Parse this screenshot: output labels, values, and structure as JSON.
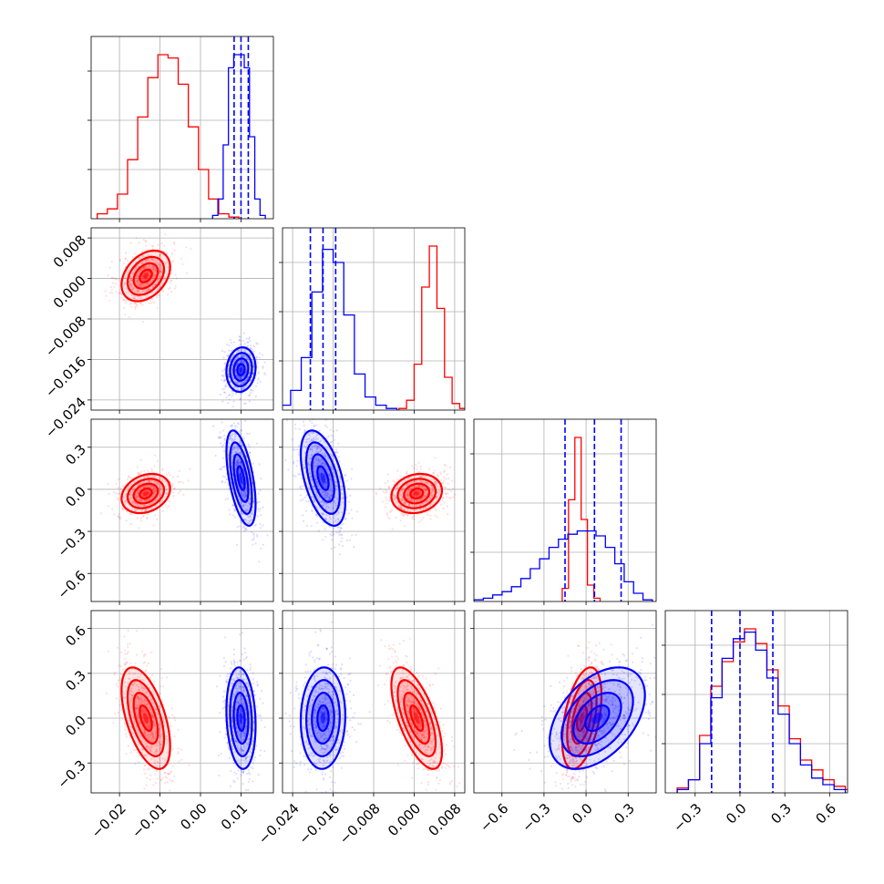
{
  "figure": {
    "title": "",
    "background": "#ffffff"
  },
  "colors": {
    "red": "#ff0000",
    "blue": "#0000ff"
  },
  "chart_data": {
    "type": "corner",
    "parameters": [
      {
        "range": [
          -0.027,
          0.018
        ],
        "ticks": [
          -0.02,
          -0.01,
          0.0,
          0.01
        ],
        "tick_labels": [
          "−0.02",
          "−0.01",
          "0.00",
          "0.01"
        ]
      },
      {
        "range": [
          -0.026,
          0.01
        ],
        "ticks": [
          -0.024,
          -0.016,
          -0.008,
          0.0,
          0.008
        ],
        "tick_labels": [
          "−0.024",
          "−0.016",
          "−0.008",
          "0.000",
          "0.008"
        ]
      },
      {
        "range": [
          -0.8,
          0.5
        ],
        "ticks": [
          -0.6,
          -0.3,
          0.0,
          0.3
        ],
        "tick_labels": [
          "−0.6",
          "−0.3",
          "0.0",
          "0.3"
        ]
      },
      {
        "range": [
          -0.5,
          0.72
        ],
        "ticks": [
          -0.3,
          0.0,
          0.3,
          0.6
        ],
        "tick_labels": [
          "−0.3",
          "0.0",
          "0.3",
          "0.6"
        ]
      }
    ],
    "series": [
      {
        "color": "#ff0000",
        "mean": [
          -0.0135,
          0.0005,
          -0.03,
          0.0
        ],
        "std": [
          0.003,
          0.0025,
          0.07,
          0.17
        ],
        "corr": [
          [
            1,
            0.35,
            0.25,
            -0.55
          ],
          [
            0.35,
            1,
            0.15,
            -0.65
          ],
          [
            0.25,
            0.15,
            1,
            0.45
          ],
          [
            -0.55,
            -0.65,
            0.45,
            1
          ]
        ],
        "hist_heights": [
          [
            0.03,
            0.06,
            0.15,
            0.36,
            0.62,
            0.86,
            1.0,
            0.98,
            0.82,
            0.56,
            0.3,
            0.12,
            0.03,
            0.01
          ],
          [
            0.01,
            0.06,
            0.28,
            0.75,
            1.0,
            0.62,
            0.2,
            0.04,
            0.01
          ],
          [
            0.08,
            0.62,
            1.0,
            0.5,
            0.1,
            0.02
          ],
          [
            0.03,
            0.08,
            0.35,
            0.65,
            0.8,
            0.92,
            1.0,
            0.91,
            0.75,
            0.53,
            0.33,
            0.2,
            0.14,
            0.08,
            0.04,
            0.02
          ]
        ],
        "hist_start": [
          -0.0255,
          -0.003,
          -0.17,
          -0.42
        ],
        "hist_bin": [
          0.0025,
          0.0015,
          0.045,
          0.075
        ]
      },
      {
        "color": "#0000ff",
        "mean": [
          0.01,
          -0.018,
          0.08,
          0.0
        ],
        "std": [
          0.0018,
          0.0022,
          0.17,
          0.17
        ],
        "corr": [
          [
            1,
            0.1,
            -0.55,
            -0.15
          ],
          [
            0.1,
            1,
            -0.5,
            0.05
          ],
          [
            -0.55,
            -0.5,
            1,
            0.45
          ],
          [
            -0.15,
            0.05,
            0.45,
            1
          ]
        ],
        "hist_heights": [
          [
            0.02,
            0.12,
            0.45,
            0.92,
            1.0,
            1.0,
            0.92,
            0.5,
            0.12,
            0.02
          ],
          [
            0.03,
            0.12,
            0.32,
            0.72,
            0.98,
            0.9,
            0.58,
            0.22,
            0.08,
            0.03,
            0.01
          ],
          [
            0.01,
            0.02,
            0.04,
            0.06,
            0.09,
            0.14,
            0.2,
            0.26,
            0.33,
            0.38,
            0.41,
            0.43,
            0.43,
            0.4,
            0.33,
            0.23,
            0.12,
            0.05,
            0.01
          ],
          [
            0.02,
            0.08,
            0.3,
            0.58,
            0.82,
            0.94,
            0.98,
            0.87,
            0.7,
            0.48,
            0.3,
            0.17,
            0.09,
            0.05,
            0.02
          ]
        ],
        "hist_start": [
          0.003,
          -0.0265,
          -0.8,
          -0.42
        ],
        "hist_bin": [
          0.0013,
          0.0021,
          0.067,
          0.075
        ],
        "quantiles": [
          [
            0.0083,
            0.01,
            0.0118
          ],
          [
            -0.0205,
            -0.018,
            -0.0155
          ],
          [
            -0.15,
            0.06,
            0.25
          ],
          [
            -0.19,
            0.0,
            0.22
          ]
        ]
      }
    ],
    "grid": true,
    "legend": "none",
    "xlabel": "",
    "ylabel": ""
  }
}
